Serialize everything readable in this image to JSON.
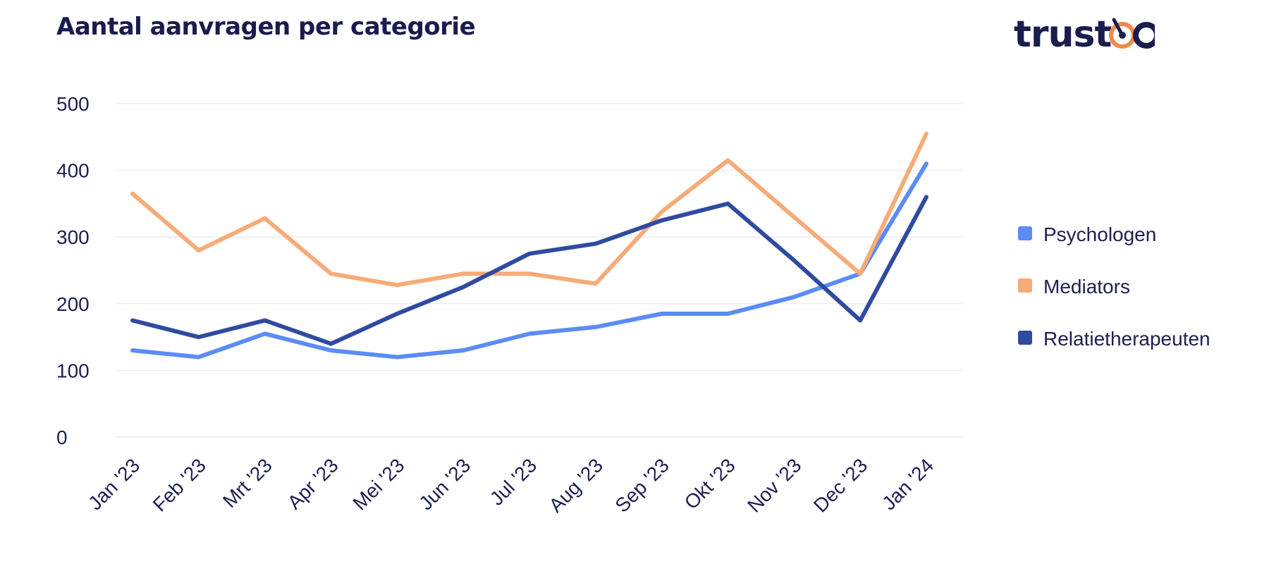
{
  "brand": {
    "logo_text": "trustoo",
    "logo_color": "#1b1d4f",
    "logo_accent": "#f0894a"
  },
  "chart_data": {
    "type": "line",
    "title": "Aantal aanvragen per categorie",
    "xlabel": "",
    "ylabel": "",
    "categories": [
      "Jan '23",
      "Feb '23",
      "Mrt '23",
      "Apr '23",
      "Mei '23",
      "Jun '23",
      "Jul '23",
      "Aug '23",
      "Sep '23",
      "Okt '23",
      "Nov '23",
      "Dec '23",
      "Jan '24"
    ],
    "ylim": [
      0,
      500
    ],
    "yticks": [
      0,
      100,
      200,
      300,
      400,
      500
    ],
    "grid": true,
    "legend_position": "right",
    "series": [
      {
        "name": "Psychologen",
        "color": "#5b8cf5",
        "values": [
          130,
          120,
          155,
          130,
          120,
          130,
          155,
          165,
          185,
          185,
          210,
          245,
          410
        ]
      },
      {
        "name": "Mediators",
        "color": "#f6ab78",
        "values": [
          365,
          280,
          328,
          245,
          228,
          245,
          245,
          230,
          338,
          415,
          330,
          245,
          455
        ]
      },
      {
        "name": "Relatietherapeuten",
        "color": "#2f4ba0",
        "values": [
          175,
          150,
          175,
          140,
          185,
          225,
          275,
          290,
          325,
          350,
          265,
          175,
          360
        ]
      }
    ]
  }
}
